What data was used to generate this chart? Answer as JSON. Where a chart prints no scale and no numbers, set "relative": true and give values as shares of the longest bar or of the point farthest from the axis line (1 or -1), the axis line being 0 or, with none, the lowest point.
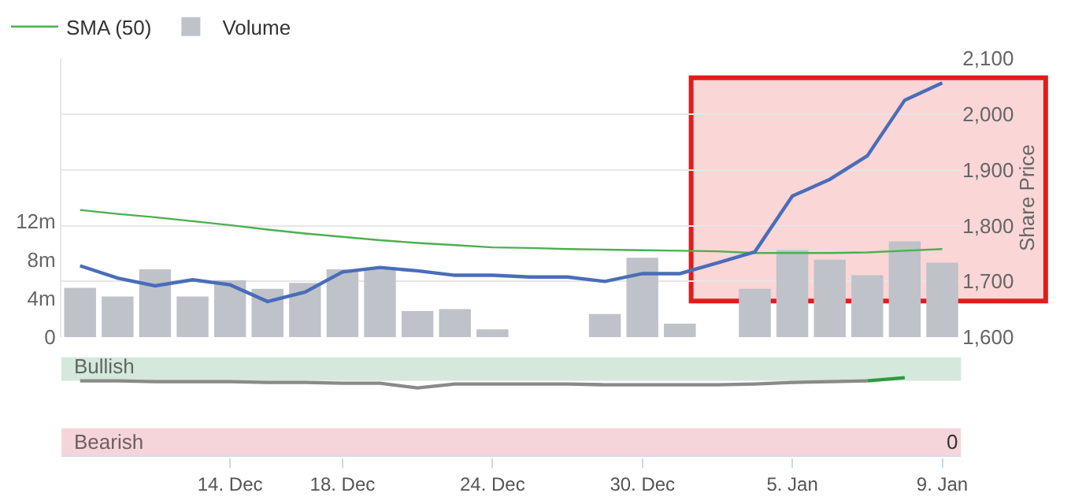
{
  "chart_data": [
    {
      "type": "line",
      "categories": [
        null,
        null,
        null,
        null,
        null,
        null,
        null,
        null,
        null,
        null,
        null,
        null,
        null,
        null,
        null,
        null,
        null,
        null,
        null,
        null,
        null,
        null,
        null,
        null
      ],
      "series": [
        {
          "type": "bar",
          "name": "Volume",
          "color": "#bfc2c8",
          "axis": "y2",
          "values": [
            5.1,
            4.2,
            7.0,
            4.2,
            5.9,
            5.0,
            5.6,
            7.0,
            7.0,
            2.7,
            2.9,
            0.8,
            null,
            null,
            2.4,
            8.2,
            1.4,
            null,
            5.0,
            9.0,
            8.0,
            6.4,
            9.9,
            7.7
          ]
        },
        {
          "type": "line",
          "name": "SMA (50)",
          "color": "#4caf50",
          "values": [
            1828,
            1821,
            1815,
            1808,
            1801,
            1793,
            1786,
            1780,
            1774,
            1769,
            1765,
            1761,
            1760,
            1758,
            1757,
            1756,
            1755,
            1754,
            1751,
            1751,
            1751,
            1752,
            1755,
            1758
          ]
        },
        {
          "type": "line",
          "color": "#4a6db8",
          "values": [
            1728,
            1706,
            1692,
            1703,
            1694,
            1664,
            1681,
            1717,
            1725,
            1719,
            1711,
            1711,
            1708,
            1708,
            1700,
            1714,
            1714,
            1733,
            1753,
            1853,
            1883,
            1925,
            2025,
            2056
          ]
        }
      ],
      "ylim": [
        1600,
        2100
      ],
      "yticks": [
        {
          "value": 1600,
          "label": "1,600"
        },
        {
          "value": 1700,
          "label": "1,700"
        },
        {
          "value": 1800,
          "label": "1,800"
        },
        {
          "value": 1900,
          "label": "1,900"
        },
        {
          "value": 2000,
          "label": "2,000"
        },
        {
          "value": 2100,
          "label": "2,100"
        }
      ],
      "ylabel": "Share Price",
      "y2lim": [
        0,
        28.8
      ],
      "y2ticks": [
        0,
        {
          "value": 4,
          "label": "4m"
        },
        {
          "value": 8,
          "label": "8m"
        },
        {
          "value": 12,
          "label": "12m"
        }
      ],
      "grid": "y",
      "legend": "top left",
      "tick_labels": "y"
    },
    {
      "type": "line",
      "relative": true,
      "categories": [
        null,
        null,
        null,
        null,
        "14. Dec",
        null,
        null,
        "18. Dec",
        null,
        null,
        null,
        "24. Dec",
        null,
        null,
        null,
        "30. Dec",
        null,
        null,
        null,
        "5. Jan",
        null,
        null,
        null,
        "9. Jan"
      ],
      "series": [
        {
          "color": "#8a8a8a",
          "values": [
            0.96,
            0.96,
            0.95,
            0.95,
            0.95,
            0.94,
            0.94,
            0.93,
            0.93,
            0.87,
            0.92,
            0.92,
            0.92,
            0.92,
            0.91,
            0.91,
            0.91,
            0.91,
            0.92,
            0.94,
            0.95,
            0.96,
            null,
            null
          ]
        },
        {
          "color": "#2e9a3e",
          "values": [
            null,
            null,
            null,
            null,
            null,
            null,
            null,
            null,
            null,
            null,
            null,
            null,
            null,
            null,
            null,
            null,
            null,
            null,
            null,
            null,
            null,
            0.96,
            1.0,
            null
          ]
        }
      ],
      "bands": [
        {
          "axis": "y",
          "from": 0.96,
          "to": 1.26,
          "label": "Bullish",
          "color": "#d4e8dc"
        },
        {
          "axis": "y",
          "from": 0,
          "to": 0.36,
          "label": "Bearish",
          "color": "#f5d5da"
        }
      ],
      "annotations": [
        "0"
      ],
      "tick_labels": "x"
    }
  ]
}
